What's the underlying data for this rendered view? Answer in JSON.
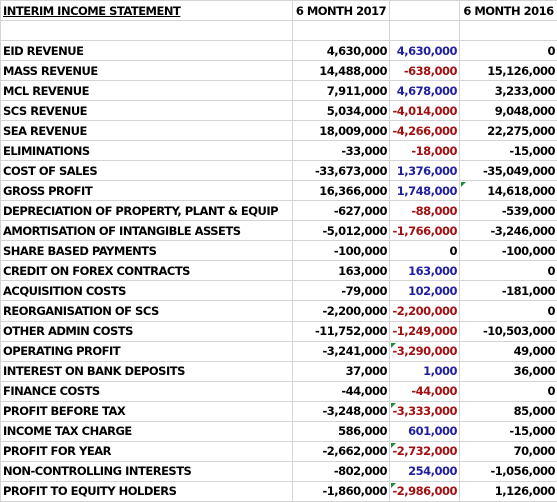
{
  "header": {
    "title": "INTERIM INCOME STATEMENT",
    "col_2017": "6 MONTH 2017",
    "col_2016": "6 MONTH 2016"
  },
  "rows": [
    {
      "label": "EID REVENUE",
      "v2017": "4,630,000",
      "change": "4,630,000",
      "change_sign": "pos",
      "v2016": "0",
      "flag": false,
      "bold": false
    },
    {
      "label": "MASS REVENUE",
      "v2017": "14,488,000",
      "change": "-638,000",
      "change_sign": "neg",
      "v2016": "15,126,000",
      "flag": false,
      "bold": false
    },
    {
      "label": "MCL REVENUE",
      "v2017": "7,911,000",
      "change": "4,678,000",
      "change_sign": "pos",
      "v2016": "3,233,000",
      "flag": false,
      "bold": false
    },
    {
      "label": "SCS REVENUE",
      "v2017": "5,034,000",
      "change": "-4,014,000",
      "change_sign": "neg",
      "v2016": "9,048,000",
      "flag": false,
      "bold": false
    },
    {
      "label": "SEA REVENUE",
      "v2017": "18,009,000",
      "change": "-4,266,000",
      "change_sign": "neg",
      "v2016": "22,275,000",
      "flag": false,
      "bold": false
    },
    {
      "label": "ELIMINATIONS",
      "v2017": "-33,000",
      "change": "-18,000",
      "change_sign": "neg",
      "v2016": "-15,000",
      "flag": false,
      "bold": false
    },
    {
      "label": "COST OF SALES",
      "v2017": "-33,673,000",
      "change": "1,376,000",
      "change_sign": "pos",
      "v2016": "-35,049,000",
      "flag": false,
      "bold": false
    },
    {
      "label": "GROSS PROFIT",
      "v2017": "16,366,000",
      "change": "1,748,000",
      "change_sign": "pos",
      "v2016": "14,618,000",
      "flag": true,
      "flag_col": "v2016",
      "bold": true
    },
    {
      "label": "DEPRECIATION OF PROPERTY, PLANT & EQUIP",
      "v2017": "-627,000",
      "change": "-88,000",
      "change_sign": "neg",
      "v2016": "-539,000",
      "flag": false,
      "bold": false
    },
    {
      "label": "AMORTISATION OF INTANGIBLE ASSETS",
      "v2017": "-5,012,000",
      "change": "-1,766,000",
      "change_sign": "neg",
      "v2016": "-3,246,000",
      "flag": false,
      "bold": false
    },
    {
      "label": "SHARE BASED PAYMENTS",
      "v2017": "-100,000",
      "change": "0",
      "change_sign": "zero",
      "v2016": "-100,000",
      "flag": false,
      "bold": false
    },
    {
      "label": "CREDIT ON FOREX CONTRACTS",
      "v2017": "163,000",
      "change": "163,000",
      "change_sign": "pos",
      "v2016": "0",
      "flag": false,
      "bold": false
    },
    {
      "label": "ACQUISITION COSTS",
      "v2017": "-79,000",
      "change": "102,000",
      "change_sign": "pos",
      "v2016": "-181,000",
      "flag": false,
      "bold": false
    },
    {
      "label": "REORGANISATION OF SCS",
      "v2017": "-2,200,000",
      "change": "-2,200,000",
      "change_sign": "neg",
      "v2016": "0",
      "flag": false,
      "bold": false
    },
    {
      "label": "OTHER ADMIN COSTS",
      "v2017": "-11,752,000",
      "change": "-1,249,000",
      "change_sign": "neg",
      "v2016": "-10,503,000",
      "flag": false,
      "bold": false
    },
    {
      "label": "OPERATING PROFIT",
      "v2017": "-3,241,000",
      "change": "-3,290,000",
      "change_sign": "neg",
      "v2016": "49,000",
      "flag": true,
      "flag_col": "change",
      "bold": true
    },
    {
      "label": "INTEREST ON BANK DEPOSITS",
      "v2017": "37,000",
      "change": "1,000",
      "change_sign": "pos",
      "v2016": "36,000",
      "flag": false,
      "bold": false
    },
    {
      "label": "FINANCE COSTS",
      "v2017": "-44,000",
      "change": "-44,000",
      "change_sign": "neg",
      "v2016": "0",
      "flag": false,
      "bold": false
    },
    {
      "label": "PROFIT BEFORE TAX",
      "v2017": "-3,248,000",
      "change": "-3,333,000",
      "change_sign": "neg",
      "v2016": "85,000",
      "flag": true,
      "flag_col": "change",
      "bold": true
    },
    {
      "label": "INCOME TAX CHARGE",
      "v2017": "586,000",
      "change": "601,000",
      "change_sign": "pos",
      "v2016": "-15,000",
      "flag": false,
      "bold": false
    },
    {
      "label": "PROFIT FOR YEAR",
      "v2017": "-2,662,000",
      "change": "-2,732,000",
      "change_sign": "neg",
      "v2016": "70,000",
      "flag": true,
      "flag_col": "change",
      "bold": true
    },
    {
      "label": "NON-CONTROLLING INTERESTS",
      "v2017": "-802,000",
      "change": "254,000",
      "change_sign": "pos",
      "v2016": "-1,056,000",
      "flag": false,
      "bold": false
    },
    {
      "label": "PROFIT TO EQUITY HOLDERS",
      "v2017": "-1,860,000",
      "change": "-2,986,000",
      "change_sign": "neg",
      "v2016": "1,126,000",
      "flag": true,
      "flag_col": "change",
      "bold": true
    }
  ]
}
